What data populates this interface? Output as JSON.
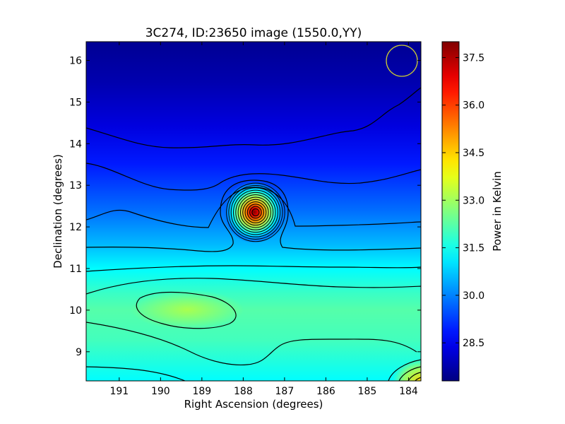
{
  "chart_data": {
    "type": "heatmap",
    "title": "3C274, ID:23650 image (1550.0,YY)",
    "xlabel": "Right Ascension (degrees)",
    "ylabel": "Declination (degrees)",
    "xlim": [
      191.8,
      183.7
    ],
    "ylim": [
      8.3,
      16.45
    ],
    "x_ticks": [
      191,
      190,
      189,
      188,
      187,
      186,
      185,
      184
    ],
    "y_ticks": [
      9,
      10,
      11,
      12,
      13,
      14,
      15,
      16
    ],
    "colorbar": {
      "label": "Power in Kelvin",
      "range": [
        27.3,
        38.0
      ],
      "ticks": [
        "28.5",
        "30.0",
        "31.5",
        "33.0",
        "34.5",
        "36.0",
        "37.5"
      ],
      "colormap": "jet"
    },
    "source": {
      "ra": 187.7,
      "dec": 12.35,
      "peak_kelvin": 38.0
    },
    "beam_circle": {
      "ra": 184.15,
      "dec": 16.0,
      "color": "#cccc33"
    },
    "contour_color": "#000000",
    "grid": false
  }
}
